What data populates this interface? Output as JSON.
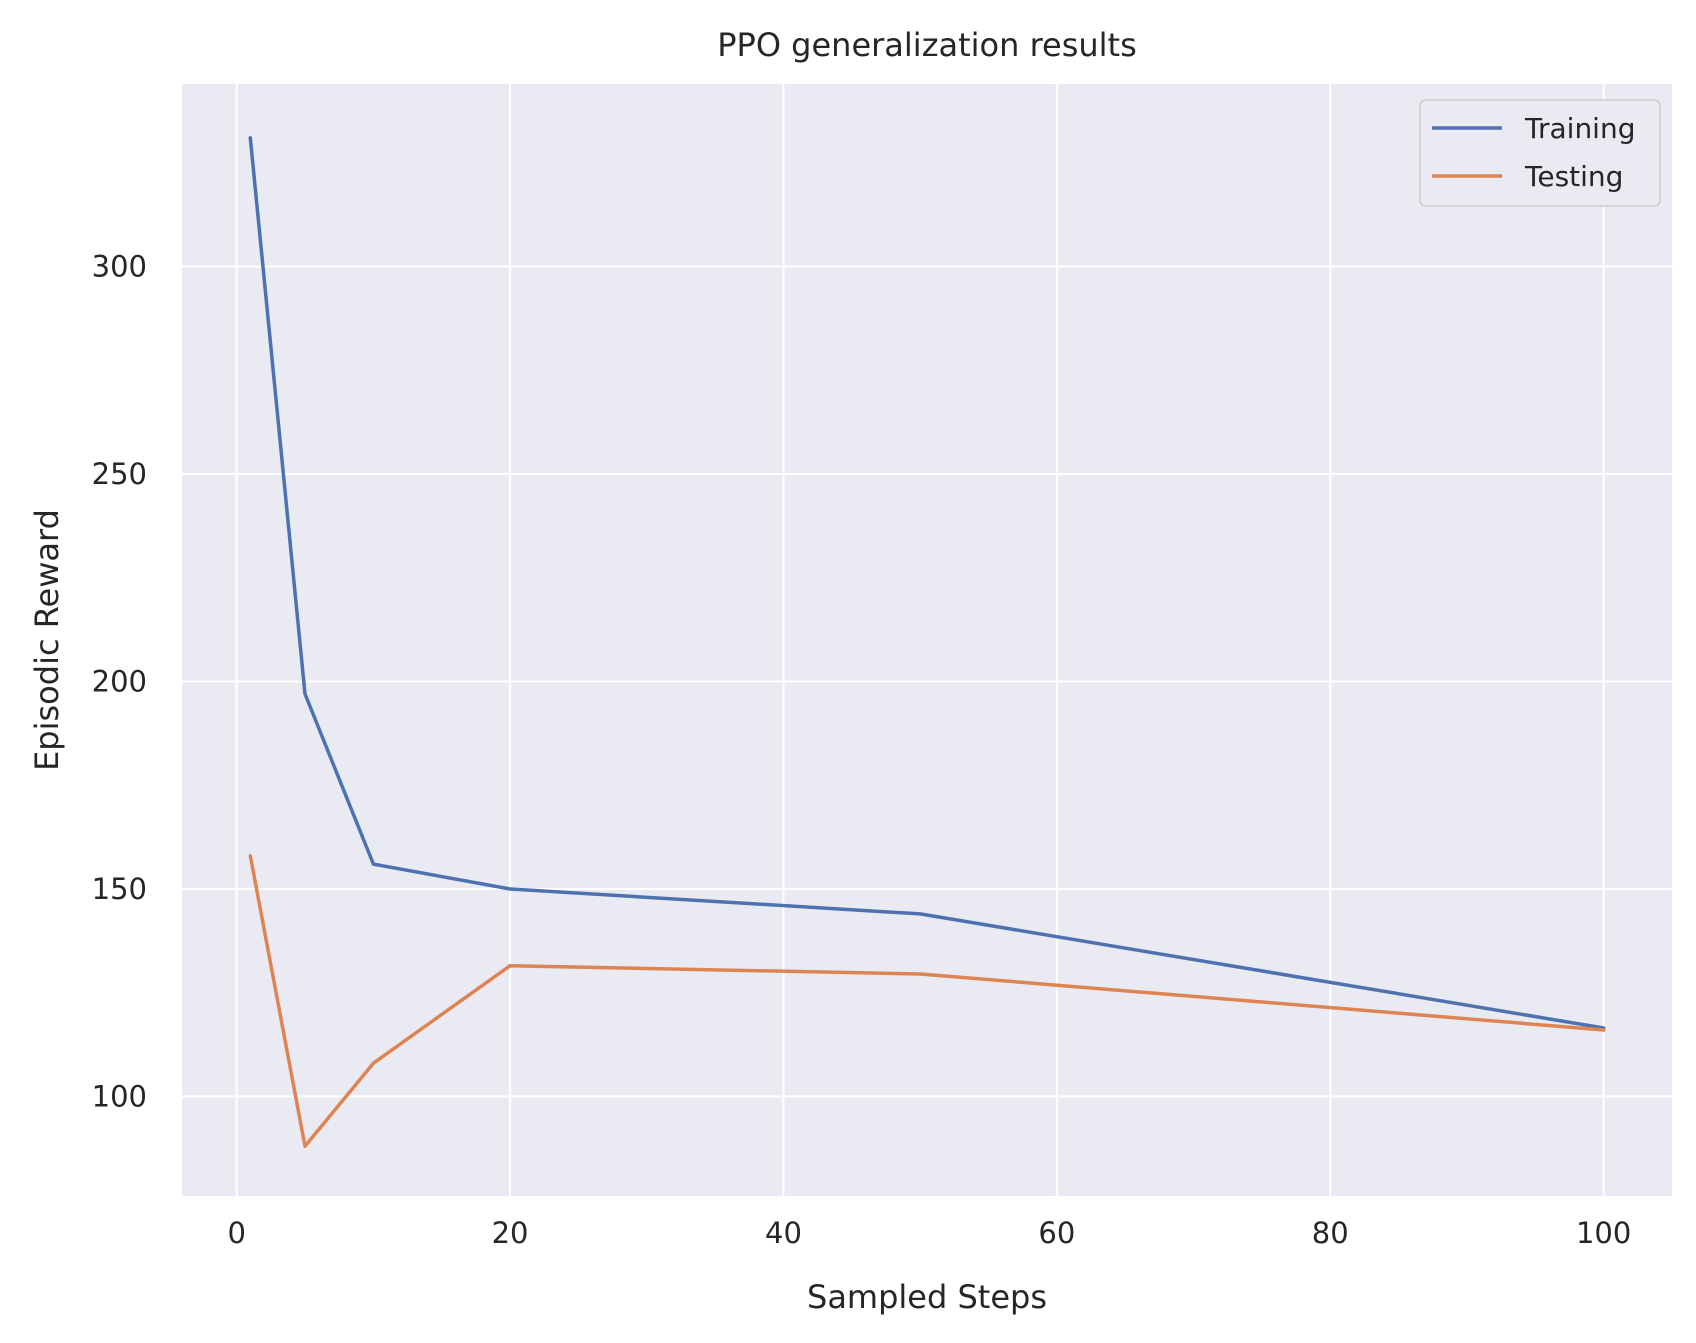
{
  "chart_data": {
    "type": "line",
    "title": "PPO generalization results",
    "xlabel": "Sampled Steps",
    "ylabel": "Episodic Reward",
    "xlim": [
      -4,
      105
    ],
    "ylim": [
      76,
      344
    ],
    "xticks": [
      0,
      20,
      40,
      60,
      80,
      100
    ],
    "yticks": [
      100,
      150,
      200,
      250,
      300
    ],
    "grid": true,
    "legend_position": "top-right",
    "background": "#eaeaf2",
    "x": [
      1,
      5,
      10,
      20,
      50,
      100
    ],
    "series": [
      {
        "name": "Training",
        "color": "#4c72b0",
        "values": [
          331,
          197,
          156,
          150,
          144,
          116.5
        ]
      },
      {
        "name": "Testing",
        "color": "#dd8452",
        "values": [
          158,
          88,
          108,
          131.5,
          129.5,
          116
        ]
      }
    ]
  }
}
